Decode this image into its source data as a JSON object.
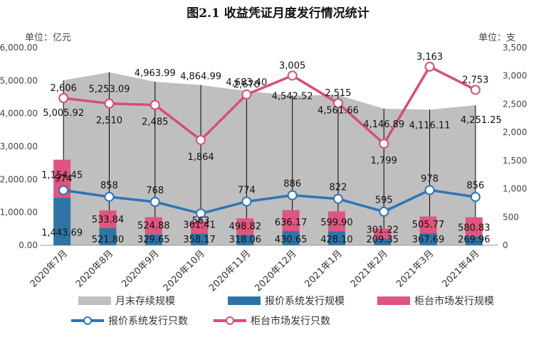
{
  "title": "图2.1 收益凭证月度发行情况统计",
  "units": {
    "left": "单位：亿元",
    "right": "单位：支"
  },
  "colors": {
    "stock": "#BFBFBF",
    "quote_bar": "#2E75A6",
    "counter_bar": "#E0557F",
    "quote_line": "#2E75B6",
    "counter_line": "#D84C7C"
  },
  "chart_data": {
    "type": "combo",
    "categories": [
      "2020年7月",
      "2020年8月",
      "2020年9月",
      "2020年10月",
      "2020年11月",
      "2020年12月",
      "2021年1月",
      "2021年2月",
      "2021年3月",
      "2021年4月"
    ],
    "categories_display": [
      "2020年7月",
      "2020年8月",
      "2020年9月",
      "2020年10月",
      "2020年11月",
      "2020年12月",
      "2021年1月",
      "2021年2月",
      "2021年3月",
      "2021年4月"
    ],
    "left_axis": {
      "min": 0,
      "max": 6000,
      "step": 1000,
      "ticks": [
        "0.00",
        "1,000.00",
        "2,000.00",
        "3,000.00",
        "4,000.00",
        "5,000.00",
        "6,000.00"
      ]
    },
    "right_axis": {
      "min": 0,
      "max": 3500,
      "step": 500,
      "ticks": [
        "0",
        "500",
        "1,000",
        "1,500",
        "2,000",
        "2,500",
        "3,000",
        "3,500"
      ]
    },
    "series": [
      {
        "name": "月末存续规模",
        "type": "area",
        "axis": "left",
        "values": [
          5005.92,
          5253.09,
          4963.99,
          4864.99,
          4683.4,
          4542.52,
          4561.66,
          4146.89,
          4116.11,
          4251.25
        ],
        "labels": [
          "5,005.92",
          "5,253.09",
          "4,963.99",
          "4,864.99",
          "4,683.40",
          "4,542.52",
          "4,561.66",
          "4,146.89",
          "4,116.11",
          "4,251.25"
        ]
      },
      {
        "name": "报价系统发行规模",
        "type": "bar",
        "stack": "issue",
        "axis": "left",
        "values": [
          1443.69,
          521.8,
          329.65,
          358.17,
          318.06,
          430.65,
          428.1,
          209.35,
          367.69,
          269.96
        ],
        "labels": [
          "1,443.69",
          "521.80",
          "329.65",
          "358.17",
          "318.06",
          "430.65",
          "428.10",
          "209.35",
          "367.69",
          "269.96"
        ]
      },
      {
        "name": "柜台市场发行规模",
        "type": "bar",
        "stack": "issue",
        "axis": "left",
        "values": [
          1154.45,
          533.84,
          524.88,
          361.41,
          498.82,
          636.17,
          599.9,
          301.22,
          505.77,
          580.83
        ],
        "labels": [
          "1,154.45",
          "533.84",
          "524.88",
          "361.41",
          "498.82",
          "636.17",
          "599.90",
          "301.22",
          "505.77",
          "580.83"
        ]
      },
      {
        "name": "报价系统发行只数",
        "type": "line",
        "axis": "right",
        "values": [
          974,
          858,
          768,
          563,
          774,
          886,
          822,
          595,
          978,
          856
        ],
        "labels": [
          "974",
          "858",
          "768",
          "563",
          "774",
          "886",
          "822",
          "595",
          "978",
          "856"
        ]
      },
      {
        "name": "柜台市场发行只数",
        "type": "line",
        "axis": "right",
        "values": [
          2606,
          2510,
          2485,
          1864,
          2670,
          3005,
          2515,
          1799,
          3163,
          2753
        ],
        "labels": [
          "2,606",
          "2,510",
          "2,485",
          "1,864",
          "2,670",
          "3,005",
          "2,515",
          "1,799",
          "3,163",
          "2,753"
        ]
      }
    ],
    "legend": {
      "position": "bottom",
      "items": [
        "月末存续规模",
        "报价系统发行规模",
        "柜台市场发行规模",
        "报价系统发行只数",
        "柜台市场发行只数"
      ]
    }
  }
}
